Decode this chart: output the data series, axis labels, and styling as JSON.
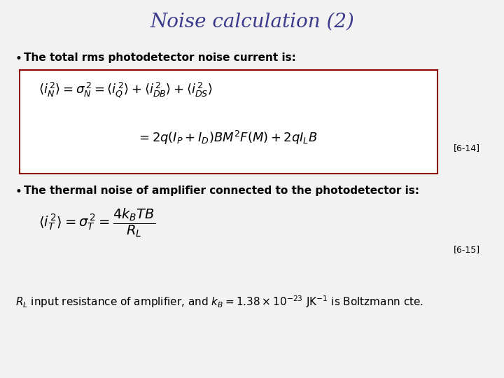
{
  "title": "Noise calculation (2)",
  "title_color": "#3b3b8c",
  "title_fontsize": 20,
  "bg_color": "#f2f2f2",
  "bullet1": "The total rms photodetector noise current is:",
  "bullet2": "The thermal noise of amplifier connected to the photodetector is:",
  "eq1_line1": "$\\langle i_N^{\\,2}\\rangle = \\sigma_N^{\\,2} = \\langle i_Q^{\\,2}\\rangle + \\langle i_{DB}^{\\,2}\\rangle + \\langle i_{DS}^{\\,2}\\rangle$",
  "eq1_line2": "$= 2q(I_P + I_D)BM^2F(M) + 2qI_L B$",
  "eq2": "$\\langle i_T^{\\,2}\\rangle = \\sigma_T^{\\,2} = \\dfrac{4k_B TB}{R_L}$",
  "ref1": "[6-14]",
  "ref2": "[6-15]",
  "box_color": "#8b0000",
  "text_color": "#000000",
  "bullet_fontsize": 11,
  "eq_fontsize": 13,
  "ref_fontsize": 9,
  "footer": "$R_L$ input resistance of amplifier, and $k_B = 1.38\\times10^{-23}$ JK$^{-1}$ is Boltzmann cte."
}
